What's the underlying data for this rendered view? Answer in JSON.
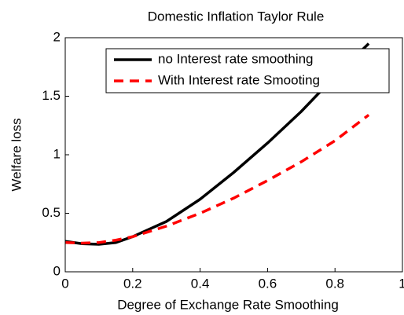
{
  "chart_data": {
    "type": "line",
    "title": "Domestic Inflation Taylor Rule",
    "x_label": "Degree of Exchange Rate Smoothing",
    "y_label": "Welfare loss",
    "x": [
      0,
      0.05,
      0.1,
      0.15,
      0.2,
      0.3,
      0.4,
      0.5,
      0.6,
      0.7,
      0.8,
      0.9
    ],
    "series": [
      {
        "name": "no Interest rate smoothing",
        "color": "#000000",
        "dash": false,
        "values": [
          0.26,
          0.24,
          0.235,
          0.25,
          0.3,
          0.43,
          0.62,
          0.85,
          1.1,
          1.37,
          1.67,
          1.95
        ]
      },
      {
        "name": "With Interest rate Smooting",
        "color": "#ff0000",
        "dash": true,
        "values": [
          0.25,
          0.245,
          0.25,
          0.27,
          0.3,
          0.39,
          0.5,
          0.63,
          0.78,
          0.94,
          1.12,
          1.34
        ]
      }
    ],
    "xlim": [
      0,
      1
    ],
    "ylim": [
      0,
      2
    ],
    "xticks": [
      0,
      0.2,
      0.4,
      0.6,
      0.8,
      1
    ],
    "yticks": [
      0,
      0.5,
      1,
      1.5,
      2
    ],
    "grid": false,
    "legend_position": "upper-right"
  }
}
